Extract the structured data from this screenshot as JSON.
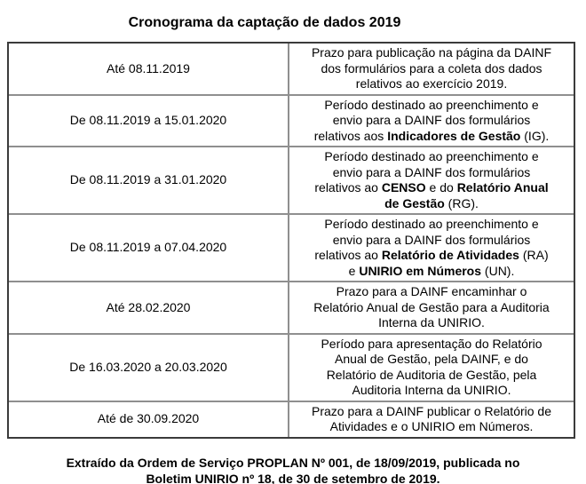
{
  "title": "Cronograma da captação de dados 2019",
  "table": {
    "rows": [
      {
        "period": "Até 08.11.2019",
        "description_lines": [
          [
            {
              "t": "Prazo para publicação na página da DAINF"
            }
          ],
          [
            {
              "t": "dos formulários para a coleta dos dados"
            }
          ],
          [
            {
              "t": "relativos ao exercício 2019."
            }
          ]
        ]
      },
      {
        "period": "De 08.11.2019 a 15.01.2020",
        "description_lines": [
          [
            {
              "t": "Período destinado ao preenchimento e"
            }
          ],
          [
            {
              "t": "envio para a DAINF dos formulários"
            }
          ],
          [
            {
              "t": "relativos aos "
            },
            {
              "t": "Indicadores de Gestão",
              "b": true
            },
            {
              "t": " (IG)."
            }
          ]
        ]
      },
      {
        "period": "De 08.11.2019 a 31.01.2020",
        "description_lines": [
          [
            {
              "t": "Período destinado ao preenchimento e"
            }
          ],
          [
            {
              "t": "envio para a DAINF dos formulários"
            }
          ],
          [
            {
              "t": "relativos ao "
            },
            {
              "t": "CENSO",
              "b": true
            },
            {
              "t": " e do "
            },
            {
              "t": "Relatório Anual",
              "b": true
            }
          ],
          [
            {
              "t": "de Gestão",
              "b": true
            },
            {
              "t": " (RG)."
            }
          ]
        ]
      },
      {
        "period": "De 08.11.2019 a 07.04.2020",
        "description_lines": [
          [
            {
              "t": "Período destinado ao preenchimento e"
            }
          ],
          [
            {
              "t": "envio para a DAINF dos formulários"
            }
          ],
          [
            {
              "t": "relativos ao "
            },
            {
              "t": "Relatório de Atividades",
              "b": true
            },
            {
              "t": " (RA)"
            }
          ],
          [
            {
              "t": "e "
            },
            {
              "t": "UNIRIO em Números",
              "b": true
            },
            {
              "t": " (UN)."
            }
          ]
        ]
      },
      {
        "period": "Até 28.02.2020",
        "description_lines": [
          [
            {
              "t": "Prazo para a DAINF encaminhar o"
            }
          ],
          [
            {
              "t": "Relatório Anual de Gestão para a Auditoria"
            }
          ],
          [
            {
              "t": "Interna da UNIRIO."
            }
          ]
        ]
      },
      {
        "period": "De 16.03.2020 a 20.03.2020",
        "description_lines": [
          [
            {
              "t": "Período para apresentação do Relatório"
            }
          ],
          [
            {
              "t": "Anual de Gestão, pela DAINF, e do"
            }
          ],
          [
            {
              "t": "Relatório de Auditoria de Gestão, pela"
            }
          ],
          [
            {
              "t": "Auditoria Interna da UNIRIO."
            }
          ]
        ]
      },
      {
        "period": "Até de 30.09.2020",
        "description_lines": [
          [
            {
              "t": "Prazo para a DAINF publicar o Relatório de"
            }
          ],
          [
            {
              "t": "Atividades e o UNIRIO em Números."
            }
          ]
        ]
      }
    ]
  },
  "footer": {
    "lines": [
      [
        {
          "t": "Extraído da Ordem de Serviço PROPLAN Nº 001, de 18/09/2019, publicada no"
        }
      ],
      [
        {
          "t": "Boletim UNIRIO nº 18, de 30 de setembro de 2019."
        }
      ]
    ]
  }
}
